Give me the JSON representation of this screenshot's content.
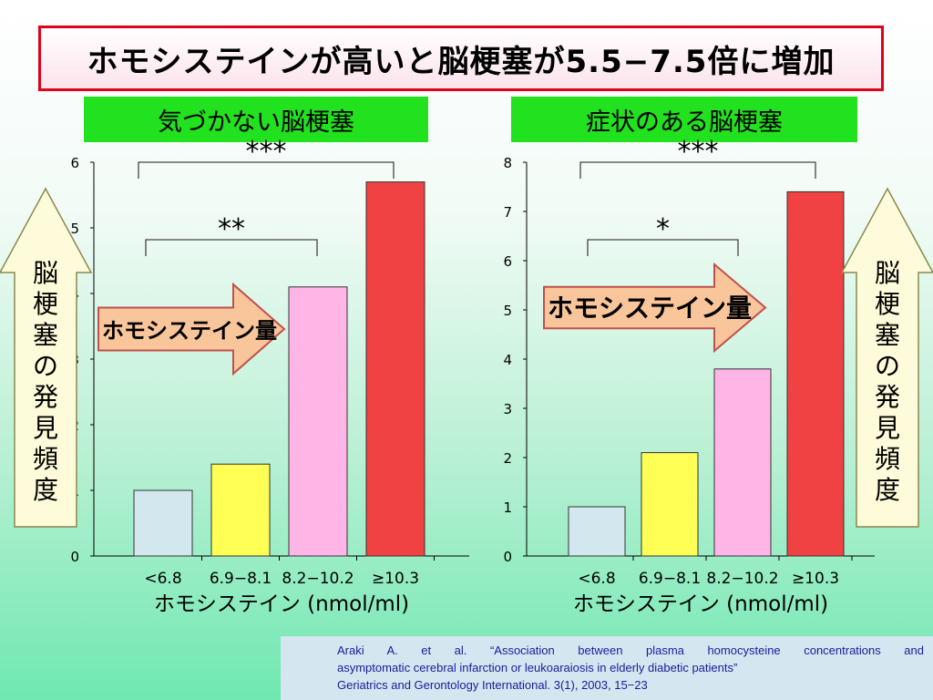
{
  "title": "ホモシステインが高いと脳梗塞が5.5−7.5倍に増加",
  "side_label": [
    "脳",
    "梗",
    "塞",
    "の",
    "発",
    "見",
    "頻",
    "度"
  ],
  "arrow_label": "ホモシステイン量",
  "chart_data": [
    {
      "type": "bar",
      "panel_label": "気づかない脳梗塞",
      "categories": [
        "<6.8",
        "6.9−8.1",
        "8.2−10.2",
        "≥10.3"
      ],
      "values": [
        1.0,
        1.4,
        4.1,
        5.7
      ],
      "ylim": [
        0,
        6
      ],
      "yticks": [
        0,
        1,
        2,
        3,
        4,
        5,
        6
      ],
      "xlabel": "ホモシステイン (nmol/ml)",
      "bar_colors": [
        "#d2e8ee",
        "#ffff55",
        "#ffb6e6",
        "#f04242"
      ],
      "significance": [
        {
          "from": 0,
          "to": 2,
          "label": "**"
        },
        {
          "from": 0,
          "to": 3,
          "label": "***"
        }
      ]
    },
    {
      "type": "bar",
      "panel_label": "症状のある脳梗塞",
      "categories": [
        "<6.8",
        "6.9−8.1",
        "8.2−10.2",
        "≥10.3"
      ],
      "values": [
        1.0,
        2.1,
        3.8,
        7.4
      ],
      "ylim": [
        0,
        8
      ],
      "yticks": [
        0,
        1,
        2,
        3,
        4,
        5,
        6,
        7,
        8
      ],
      "xlabel": "ホモシステイン (nmol/ml)",
      "bar_colors": [
        "#d2e8ee",
        "#ffff55",
        "#ffb6e6",
        "#f04242"
      ],
      "significance": [
        {
          "from": 0,
          "to": 2,
          "label": "*"
        },
        {
          "from": 0,
          "to": 3,
          "label": "***"
        }
      ]
    }
  ],
  "reference": {
    "line1": "Araki A. et al. “Association between plasma homocysteine concentrations and",
    "line2": "asymptomatic cerebral infarction or leukoaraiosis in elderly diabetic patients”",
    "line3": "Geriatrics and Gerontology International. 3(1), 2003, 15−23"
  }
}
